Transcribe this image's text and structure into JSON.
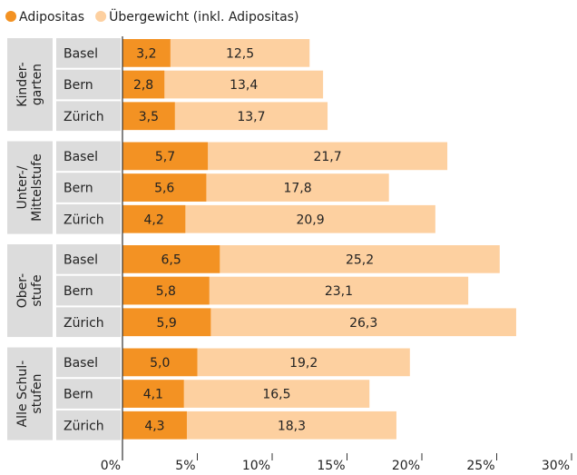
{
  "chart_data": {
    "type": "grouped-overlap-bar",
    "series": [
      {
        "name": "Adipositas",
        "color": "#f39223"
      },
      {
        "name": "Übergewicht (inkl. Adipositas)",
        "color": "#fdd0a0"
      }
    ],
    "groups": [
      {
        "label": [
          "Kinder-",
          "garten"
        ],
        "categories": [
          "Basel",
          "Bern",
          "Zürich"
        ],
        "series": [
          {
            "values": [
              3.2,
              2.8,
              3.5
            ],
            "value_labels": [
              "3,2",
              "2,8",
              "3,5"
            ]
          },
          {
            "values": [
              12.5,
              13.4,
              13.7
            ],
            "value_labels": [
              "12,5",
              "13,4",
              "13,7"
            ]
          }
        ]
      },
      {
        "label": [
          "Unter-/",
          "Mittelstufe"
        ],
        "categories": [
          "Basel",
          "Bern",
          "Zürich"
        ],
        "series": [
          {
            "values": [
              5.7,
              5.6,
              4.2
            ],
            "value_labels": [
              "5,7",
              "5,6",
              "4,2"
            ]
          },
          {
            "values": [
              21.7,
              17.8,
              20.9
            ],
            "value_labels": [
              "21,7",
              "17,8",
              "20,9"
            ]
          }
        ]
      },
      {
        "label": [
          "Ober-",
          "stufe"
        ],
        "categories": [
          "Basel",
          "Bern",
          "Zürich"
        ],
        "series": [
          {
            "values": [
              6.5,
              5.8,
              5.9
            ],
            "value_labels": [
              "6,5",
              "5,8",
              "5,9"
            ]
          },
          {
            "values": [
              25.2,
              23.1,
              26.3
            ],
            "value_labels": [
              "25,2",
              "23,1",
              "26,3"
            ]
          }
        ]
      },
      {
        "label": [
          "Alle Schul-",
          "stufen"
        ],
        "categories": [
          "Basel",
          "Bern",
          "Zürich"
        ],
        "series": [
          {
            "values": [
              5.0,
              4.1,
              4.3
            ],
            "value_labels": [
              "5,0",
              "4,1",
              "4,3"
            ]
          },
          {
            "values": [
              19.2,
              16.5,
              18.3
            ],
            "value_labels": [
              "19,2",
              "16,5",
              "18,3"
            ]
          }
        ]
      }
    ],
    "xlim": [
      0,
      30
    ],
    "xticks": [
      {
        "value": 0,
        "label": "0%"
      },
      {
        "value": 5,
        "label": "5%"
      },
      {
        "value": 10,
        "label": "10%"
      },
      {
        "value": 15,
        "label": "15%"
      },
      {
        "value": 20,
        "label": "20%"
      },
      {
        "value": 25,
        "label": "25%"
      },
      {
        "value": 30,
        "label": "30%"
      }
    ]
  }
}
